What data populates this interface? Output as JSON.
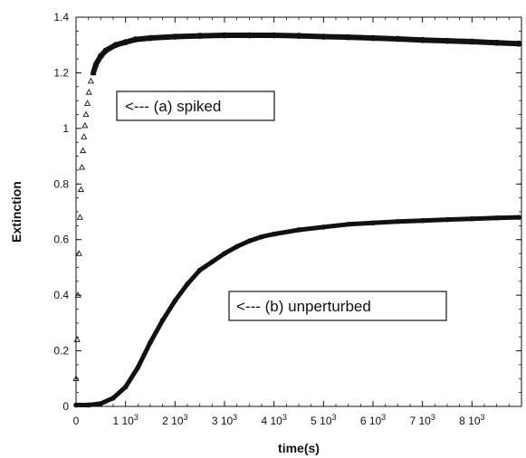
{
  "chart_data": {
    "type": "scatter",
    "xlabel": "time(s)",
    "ylabel": "Extinction",
    "xlim": [
      0,
      9000
    ],
    "ylim": [
      0,
      1.4
    ],
    "x_tick_values": [
      0,
      1000,
      2000,
      3000,
      4000,
      5000,
      6000,
      7000,
      8000
    ],
    "x_ticks": [
      {
        "base": "0",
        "exp": ""
      },
      {
        "base": "1 10",
        "exp": "3"
      },
      {
        "base": "2 10",
        "exp": "3"
      },
      {
        "base": "3 10",
        "exp": "3"
      },
      {
        "base": "4 10",
        "exp": "3"
      },
      {
        "base": "5 10",
        "exp": "3"
      },
      {
        "base": "6 10",
        "exp": "3"
      },
      {
        "base": "7 10",
        "exp": "3"
      },
      {
        "base": "8 10",
        "exp": "3"
      }
    ],
    "y_tick_values": [
      0,
      0.2,
      0.4,
      0.6,
      0.8,
      1.0,
      1.2,
      1.4
    ],
    "y_ticks": [
      "0",
      "0.2",
      "0.4",
      "0.6",
      "0.8",
      "1",
      "1.2",
      "1.4"
    ],
    "grid": false,
    "series": [
      {
        "marker": "triangle-open",
        "color": "#111111",
        "x": [
          0,
          20,
          40,
          60,
          80,
          100,
          120,
          140,
          160,
          180,
          200,
          230,
          260,
          300,
          350,
          400,
          500,
          600,
          800,
          1000,
          1200,
          1500,
          2000,
          2500,
          3000,
          3500,
          4000,
          4500,
          5000,
          5500,
          6000,
          6500,
          7000,
          7500,
          8000,
          8500,
          8950
        ],
        "y": [
          0.1,
          0.24,
          0.4,
          0.55,
          0.68,
          0.78,
          0.86,
          0.92,
          0.97,
          1.01,
          1.05,
          1.09,
          1.13,
          1.17,
          1.2,
          1.23,
          1.26,
          1.28,
          1.3,
          1.31,
          1.32,
          1.325,
          1.33,
          1.333,
          1.335,
          1.335,
          1.335,
          1.333,
          1.33,
          1.328,
          1.325,
          1.322,
          1.318,
          1.315,
          1.312,
          1.308,
          1.305
        ]
      },
      {
        "marker": "dot",
        "color": "#111111",
        "x": [
          0,
          250,
          500,
          750,
          1000,
          1250,
          1500,
          1750,
          2000,
          2250,
          2500,
          2750,
          3000,
          3250,
          3500,
          3750,
          4000,
          4500,
          5000,
          5500,
          6000,
          6500,
          7000,
          7500,
          8000,
          8500,
          8950
        ],
        "y": [
          0.005,
          0.005,
          0.01,
          0.03,
          0.07,
          0.14,
          0.23,
          0.31,
          0.38,
          0.44,
          0.49,
          0.52,
          0.55,
          0.575,
          0.595,
          0.61,
          0.62,
          0.635,
          0.645,
          0.655,
          0.66,
          0.665,
          0.668,
          0.672,
          0.675,
          0.678,
          0.68
        ]
      }
    ],
    "annotations": [
      {
        "text": "<--- (a)  spiked",
        "x": 800,
        "y": 1.13
      },
      {
        "text": "<--- (b)  unperturbed",
        "x": 3270,
        "y": 0.365
      }
    ]
  }
}
